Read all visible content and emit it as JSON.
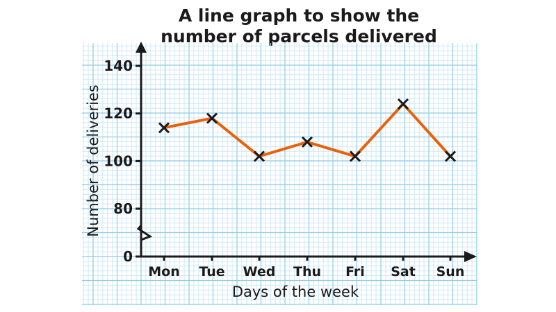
{
  "chart_data": {
    "type": "line",
    "title": "A line graph to show the number of parcels delivered",
    "title_lines": [
      "A line graph to show the",
      "number of parcels delivered"
    ],
    "xlabel": "Days of the week",
    "ylabel": "Number of deliveries",
    "categories": [
      "Mon",
      "Tue",
      "Wed",
      "Thu",
      "Fri",
      "Sat",
      "Sun"
    ],
    "values": [
      114,
      118,
      102,
      108,
      102,
      124,
      102
    ],
    "yticks": [
      0,
      80,
      100,
      120,
      140
    ],
    "ylim": [
      80,
      140
    ],
    "axis_break": true,
    "grid": true,
    "marker": "x",
    "colors": {
      "line": "#e8620a",
      "grid_major": "#8ecbe9",
      "grid_minor": "#cfe9f7",
      "axis": "#1a1a1a"
    }
  }
}
